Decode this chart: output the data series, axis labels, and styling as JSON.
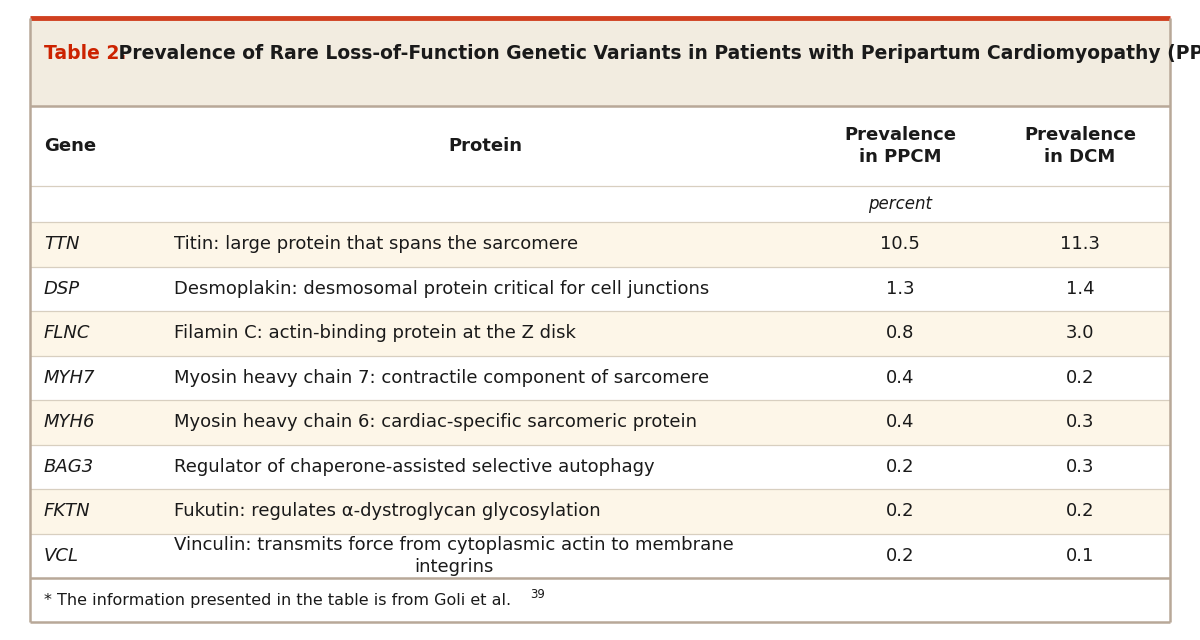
{
  "title_label": "Table 2.",
  "title_text": " Prevalence of Rare Loss-of-Function Genetic Variants in Patients with Peripartum Cardiomyopathy (PPCM) or Dilated Cardiomyopathy (DCM).*",
  "col_headers": [
    "Gene",
    "Protein",
    "Prevalence\nin PPCM",
    "Prevalence\nin DCM"
  ],
  "unit_label": "percent",
  "rows": [
    [
      "TTN",
      "Titin: large protein that spans the sarcomere",
      "10.5",
      "11.3"
    ],
    [
      "DSP",
      "Desmoplakin: desmosomal protein critical for cell junctions",
      "1.3",
      "1.4"
    ],
    [
      "FLNC",
      "Filamin C: actin-binding protein at the Z disk",
      "0.8",
      "3.0"
    ],
    [
      "MYH7",
      "Myosin heavy chain 7: contractile component of sarcomere",
      "0.4",
      "0.2"
    ],
    [
      "MYH6",
      "Myosin heavy chain 6: cardiac-specific sarcomeric protein",
      "0.4",
      "0.3"
    ],
    [
      "BAG3",
      "Regulator of chaperone-assisted selective autophagy",
      "0.2",
      "0.3"
    ],
    [
      "FKTN",
      "Fukutin: regulates α-dystroglycan glycosylation",
      "0.2",
      "0.2"
    ],
    [
      "VCL",
      "Vinculin: transmits force from cytoplasmic actin to membrane\nintegrins",
      "0.2",
      "0.1"
    ]
  ],
  "row_beige": [
    0,
    2,
    4,
    6
  ],
  "footnote": "* The information presented in the table is from Goli et al.",
  "footnote_superscript": "39",
  "bg_outer": "#ffffff",
  "bg_title": "#f2ece0",
  "bg_beige_row": "#fdf6e8",
  "bg_white_row": "#ffffff",
  "bg_col_header": "#ffffff",
  "border_color_outer": "#b8a898",
  "border_color_inner": "#d8cfc0",
  "title_red_color": "#cc2200",
  "text_color": "#1a1a1a",
  "top_border_red": "#d04020"
}
